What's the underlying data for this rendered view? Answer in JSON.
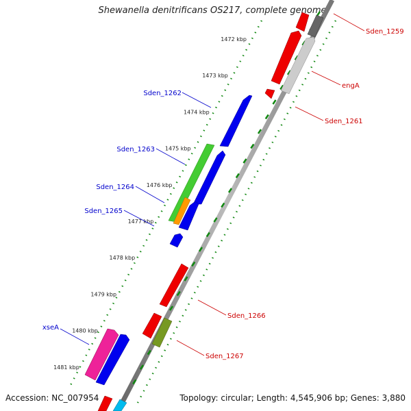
{
  "title": "Shewanella denitrificans OS217, complete genome",
  "footer": {
    "accession": "Accession: NC_007954",
    "summary": "Topology: circular; Length: 4,545,906 bp; Genes: 3,880"
  },
  "ticks": [
    "1472 kbp",
    "1473 kbp",
    "1474 kbp",
    "1475 kbp",
    "1476 kbp",
    "1477 kbp",
    "1478 kbp",
    "1479 kbp",
    "1480 kbp",
    "1481 kbp"
  ],
  "labels": {
    "sden_1259": "Sden_1259",
    "enga": "engA",
    "sden_1261": "Sden_1261",
    "sden_1262": "Sden_1262",
    "sden_1263": "Sden_1263",
    "sden_1264": "Sden_1264",
    "sden_1265": "Sden_1265",
    "sden_1266": "Sden_1266",
    "sden_1267": "Sden_1267",
    "xsea": "xseA"
  },
  "colors": {
    "forward_label": "#0000cc",
    "reverse_label": "#cc0000",
    "forward_cds": "#0000ee",
    "reverse_cds": "#ee0000",
    "rna": "#44cc33",
    "orange": "#ff9900",
    "grey": "#bbbbbb",
    "dark_grey": "#666666",
    "olive": "#779922",
    "magenta": "#ee2299",
    "cyan": "#00bbee",
    "dots": "#118811",
    "ticks": "#118811"
  }
}
